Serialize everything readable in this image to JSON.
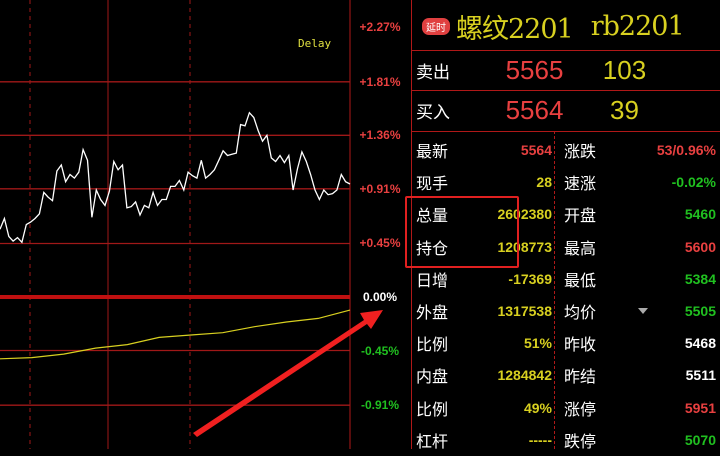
{
  "chart_data": {
    "type": "line",
    "yaxis_ticks": [
      "+2.27%",
      "+1.81%",
      "+1.36%",
      "+0.91%",
      "+0.45%",
      "0.00%",
      "-0.45%",
      "-0.91%"
    ],
    "yaxis_tick_values": [
      2.27,
      1.81,
      1.36,
      0.91,
      0.45,
      0,
      -0.45,
      -0.91
    ],
    "annotation": "Delay",
    "series": [
      {
        "color": "#ffffff",
        "values": [
          0.57,
          0.66,
          0.51,
          0.47,
          0.5,
          0.46,
          0.61,
          0.63,
          0.66,
          0.7,
          0.88,
          0.84,
          0.81,
          1.06,
          1.11,
          0.97,
          1.03,
          1.0,
          1.05,
          1.24,
          1.15,
          0.67,
          0.9,
          0.82,
          0.77,
          0.89,
          1.14,
          1.07,
          1.11,
          0.75,
          0.76,
          0.8,
          0.69,
          0.77,
          0.75,
          0.88,
          0.77,
          0.82,
          0.82,
          0.93,
          0.93,
          0.98,
          0.9,
          1.05,
          1.02,
          1.0,
          1.15,
          1.0,
          1.03,
          1.07,
          1.15,
          1.23,
          1.19,
          1.2,
          1.21,
          1.45,
          1.44,
          1.55,
          1.51,
          1.4,
          1.31,
          1.36,
          1.17,
          1.14,
          1.19,
          1.13,
          1.19,
          0.9,
          1.08,
          1.22,
          1.14,
          1.03,
          0.9,
          0.82,
          0.9,
          0.86,
          0.87,
          0.9,
          1.03,
          0.97,
          0.95
        ]
      },
      {
        "color": "#d8d020",
        "values": [
          -0.52,
          -0.51,
          -0.48,
          -0.43,
          -0.4,
          -0.34,
          -0.32,
          -0.3,
          -0.25,
          -0.21,
          -0.18,
          -0.11
        ]
      }
    ]
  },
  "header": {
    "delay_tag": "延时",
    "name": "螺纹2201",
    "code": "rb2201"
  },
  "quotes": [
    {
      "label": "卖出",
      "price": "5565",
      "volume": "103"
    },
    {
      "label": "买入",
      "price": "5564",
      "volume": "39"
    }
  ],
  "left_stats": [
    {
      "label": "最新",
      "value": "5564",
      "color": "#e84040"
    },
    {
      "label": "现手",
      "value": "28",
      "color": "#d8d020"
    },
    {
      "label": "总量",
      "value": "2602380",
      "color": "#d8d020"
    },
    {
      "label": "持仓",
      "value": "1208773",
      "color": "#d8d020"
    },
    {
      "label": "日增",
      "value": "-17369",
      "color": "#d8d020"
    },
    {
      "label": "外盘",
      "value": "1317538",
      "color": "#d8d020"
    },
    {
      "label": "比例",
      "value": "51%",
      "color": "#d8d020"
    },
    {
      "label": "内盘",
      "value": "1284842",
      "color": "#d8d020"
    },
    {
      "label": "比例",
      "value": "49%",
      "color": "#d8d020"
    },
    {
      "label": "杠杆",
      "value": "-----",
      "color": "#d8d020"
    }
  ],
  "right_stats": [
    {
      "label": "涨跌",
      "value": "53/0.96%",
      "color": "#e84040"
    },
    {
      "label": "速涨",
      "value": "-0.02%",
      "color": "#20c020"
    },
    {
      "label": "开盘",
      "value": "5460",
      "color": "#20c020"
    },
    {
      "label": "最高",
      "value": "5600",
      "color": "#e84040"
    },
    {
      "label": "最低",
      "value": "5384",
      "color": "#20c020"
    },
    {
      "label": "均价",
      "value": "5505",
      "color": "#20c020"
    },
    {
      "label": "昨收",
      "value": "5468",
      "color": "#ffffff"
    },
    {
      "label": "昨结",
      "value": "5511",
      "color": "#ffffff"
    },
    {
      "label": "涨停",
      "value": "5951",
      "color": "#e84040"
    },
    {
      "label": "跌停",
      "value": "5070",
      "color": "#20c020"
    }
  ]
}
